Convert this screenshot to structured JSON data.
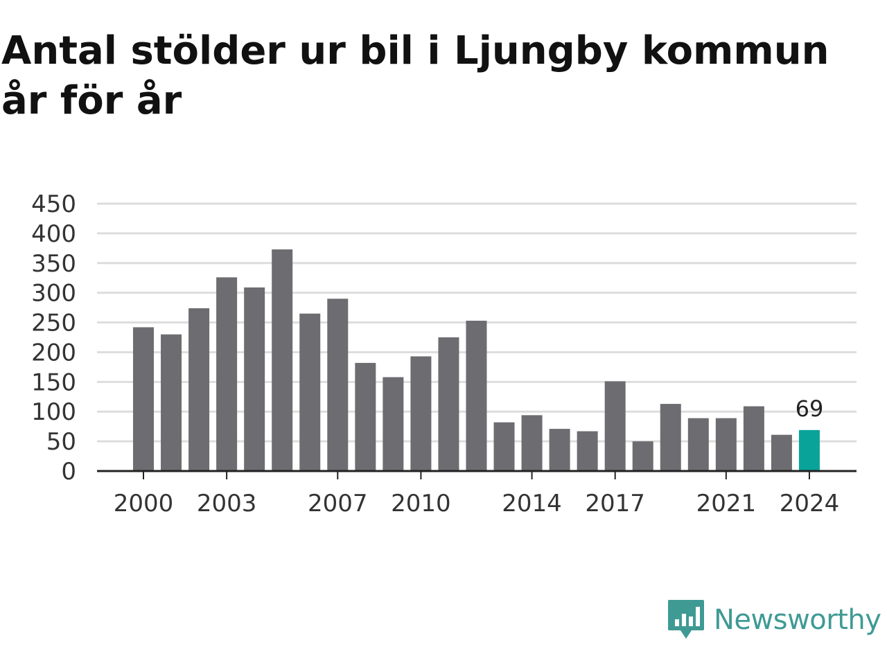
{
  "title": "Antal stölder ur bil i Ljungby kommun år för år",
  "brand": {
    "name": "Newsworthy",
    "icon": "newsworthy-logo-icon",
    "color": "#3f9a94"
  },
  "colors": {
    "bar": "#6d6c71",
    "highlight": "#0aa39a",
    "grid": "#dddddd",
    "axis": "#222222",
    "text": "#333333"
  },
  "chart_data": {
    "type": "bar",
    "title": "Antal stölder ur bil i Ljungby kommun år för år",
    "xlabel": "",
    "ylabel": "",
    "categories": [
      2000,
      2001,
      2002,
      2003,
      2004,
      2005,
      2006,
      2007,
      2008,
      2009,
      2010,
      2011,
      2012,
      2013,
      2014,
      2015,
      2016,
      2017,
      2018,
      2019,
      2020,
      2021,
      2022,
      2023,
      2024
    ],
    "values": [
      242,
      230,
      274,
      326,
      309,
      373,
      265,
      290,
      182,
      158,
      193,
      225,
      253,
      82,
      94,
      71,
      67,
      151,
      50,
      113,
      89,
      89,
      109,
      61,
      69
    ],
    "x_tick_labels": [
      "2000",
      "2003",
      "2007",
      "2010",
      "2014",
      "2017",
      "2021",
      "2024"
    ],
    "y_ticks": [
      0,
      50,
      100,
      150,
      200,
      250,
      300,
      350,
      400,
      450
    ],
    "ylim": [
      0,
      450
    ],
    "grid": true,
    "highlight": {
      "category": 2024,
      "label": "69"
    }
  }
}
